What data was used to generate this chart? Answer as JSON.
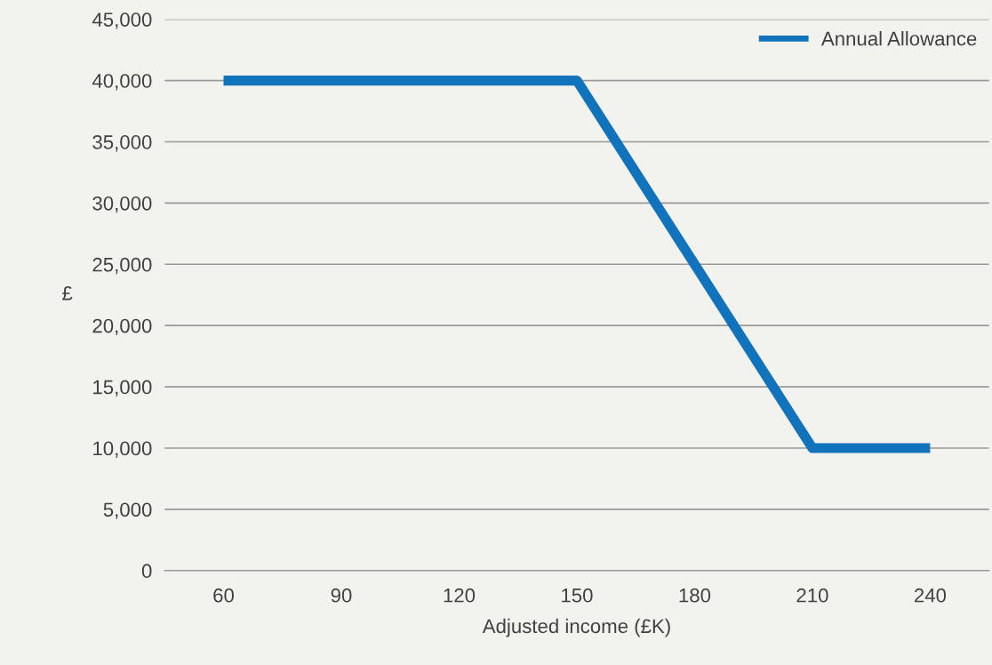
{
  "chart_data": {
    "type": "line",
    "xlabel": "Adjusted income (£K)",
    "ylabel": "£",
    "categories": [
      "60",
      "90",
      "120",
      "150",
      "180",
      "210",
      "240"
    ],
    "series": [
      {
        "name": "Annual Allowance",
        "color": "#1273bd",
        "values": [
          40000,
          40000,
          40000,
          40000,
          25000,
          10000,
          10000
        ]
      }
    ],
    "ylim": [
      0,
      45000
    ],
    "yticks": [
      {
        "value": 0,
        "label": "0"
      },
      {
        "value": 5000,
        "label": "5,000"
      },
      {
        "value": 10000,
        "label": "10,000"
      },
      {
        "value": 15000,
        "label": "15,000"
      },
      {
        "value": 20000,
        "label": "20,000"
      },
      {
        "value": 25000,
        "label": "25,000"
      },
      {
        "value": 30000,
        "label": "30,000"
      },
      {
        "value": 35000,
        "label": "35,000"
      },
      {
        "value": 40000,
        "label": "40,000"
      },
      {
        "value": 45000,
        "label": "45,000"
      }
    ],
    "grid": "y",
    "legend": "top right",
    "marker": "none",
    "line_style": "solid"
  }
}
